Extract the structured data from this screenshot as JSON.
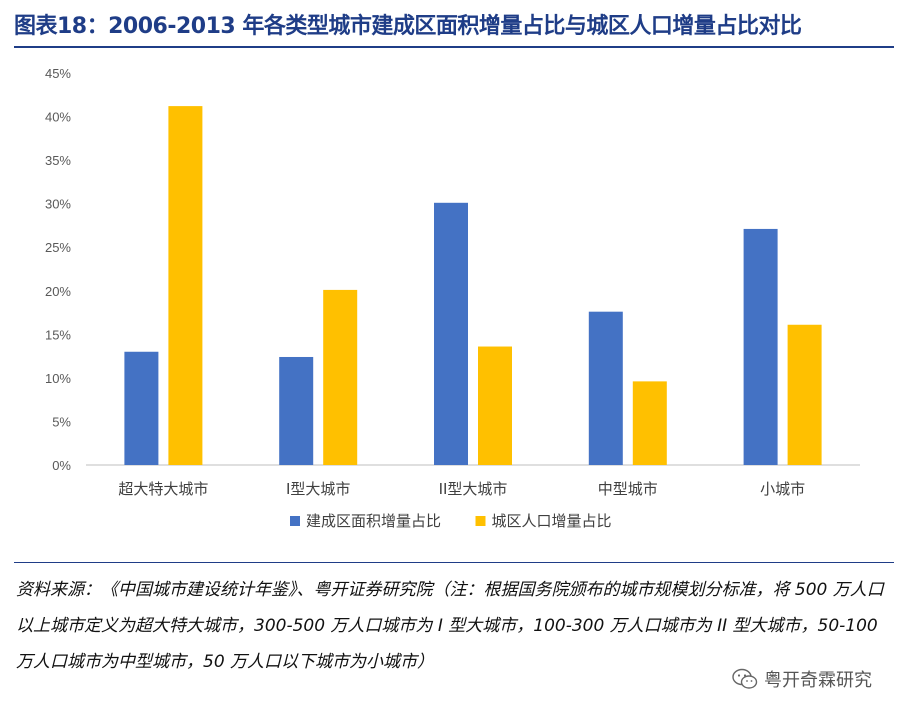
{
  "title": "图表18：2006-2013 年各类型城市建成区面积增量占比与城区人口增量占比对比",
  "source_note": "资料来源：《中国城市建设统计年鉴》、粤开证券研究院（注：根据国务院颁布的城市规模划分标准，将 500 万人口以上城市定义为超大特大城市，300-500 万人口城市为 I 型大城市，100-300 万人口城市为 II 型大城市，50-100 万人口城市为中型城市，50 万人口以下城市为小城市）",
  "watermark": {
    "text": "粤开奇霖研究",
    "icon": "wechat-icon"
  },
  "chart_data": {
    "type": "bar",
    "categories": [
      "超大特大城市",
      "I型大城市",
      "II型大城市",
      "中型城市",
      "小城市"
    ],
    "series": [
      {
        "name": "建成区面积增量占比",
        "color": "#4472C4",
        "values": [
          13,
          12.4,
          30.1,
          17.6,
          27.1
        ]
      },
      {
        "name": "城区人口增量占比",
        "color": "#FFC000",
        "values": [
          41.2,
          20.1,
          13.6,
          9.6,
          16.1
        ]
      }
    ],
    "yticks": [
      "0%",
      "5%",
      "10%",
      "15%",
      "20%",
      "25%",
      "30%",
      "35%",
      "40%",
      "45%"
    ],
    "ylim": [
      0,
      45
    ],
    "grid": false,
    "legend_position": "bottom"
  }
}
